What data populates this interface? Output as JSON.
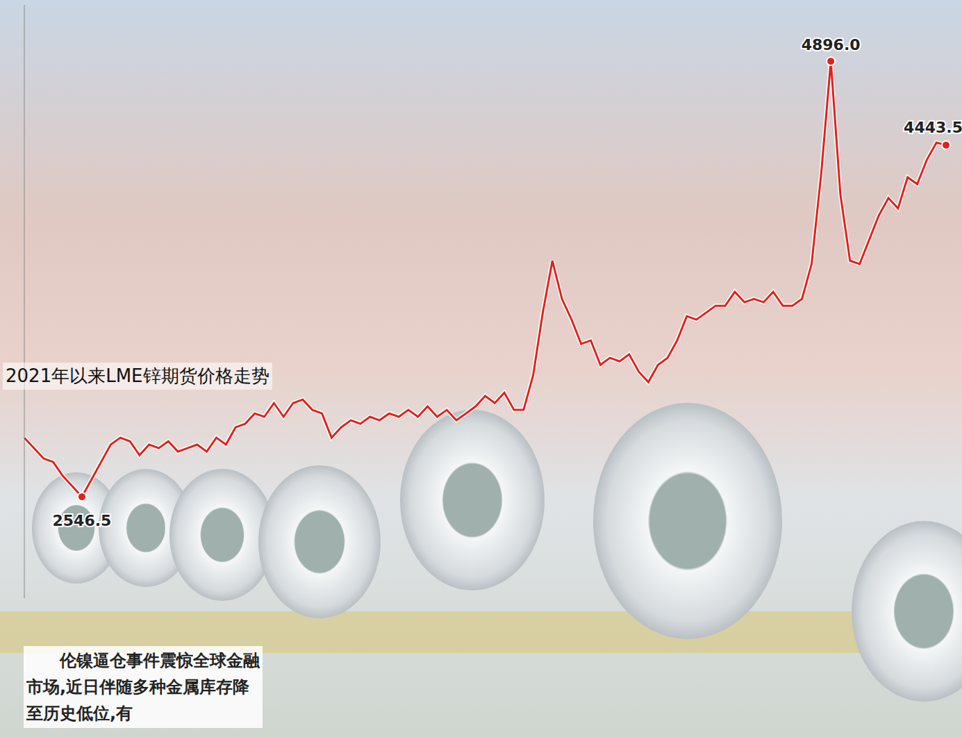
{
  "chart_data": {
    "type": "line",
    "title": "2021年以来LME锌期货价格走势",
    "caption": "伦镍逼仓事件震惊全球金融市场,近日伴随多种金属库存降至历史低位,有",
    "values": [
      2865,
      2809,
      2753,
      2734,
      2659,
      2603,
      2546.5,
      2640,
      2734,
      2828,
      2865,
      2846,
      2771,
      2828,
      2809,
      2846,
      2790,
      2809,
      2828,
      2790,
      2865,
      2828,
      2921,
      2940,
      2996,
      2978,
      3052,
      2978,
      3052,
      3071,
      3015,
      2996,
      2865,
      2921,
      2959,
      2940,
      2978,
      2959,
      2996,
      2978,
      3015,
      2978,
      3034,
      2978,
      3015,
      2959,
      2996,
      3034,
      3090,
      3052,
      3108,
      3015,
      3015,
      3202,
      3539,
      3820,
      3614,
      3502,
      3371,
      3390,
      3258,
      3296,
      3277,
      3315,
      3221,
      3165,
      3258,
      3296,
      3390,
      3521,
      3502,
      3539,
      3577,
      3577,
      3652,
      3596,
      3614,
      3596,
      3652,
      3577,
      3577,
      3614,
      3802,
      4289,
      4896.0,
      4177,
      3820,
      3802,
      3933,
      4064,
      4158,
      4102,
      4270,
      4233,
      4364,
      4457,
      4443.5
    ],
    "annotations": [
      {
        "text": "2546.5",
        "index": 6
      },
      {
        "text": "4896.0",
        "index": 84
      },
      {
        "text": "4443.5",
        "index": 96
      }
    ],
    "color": "#e3201b",
    "ylim": [
      2000,
      5200
    ],
    "grid": false,
    "tick_labels": false
  }
}
